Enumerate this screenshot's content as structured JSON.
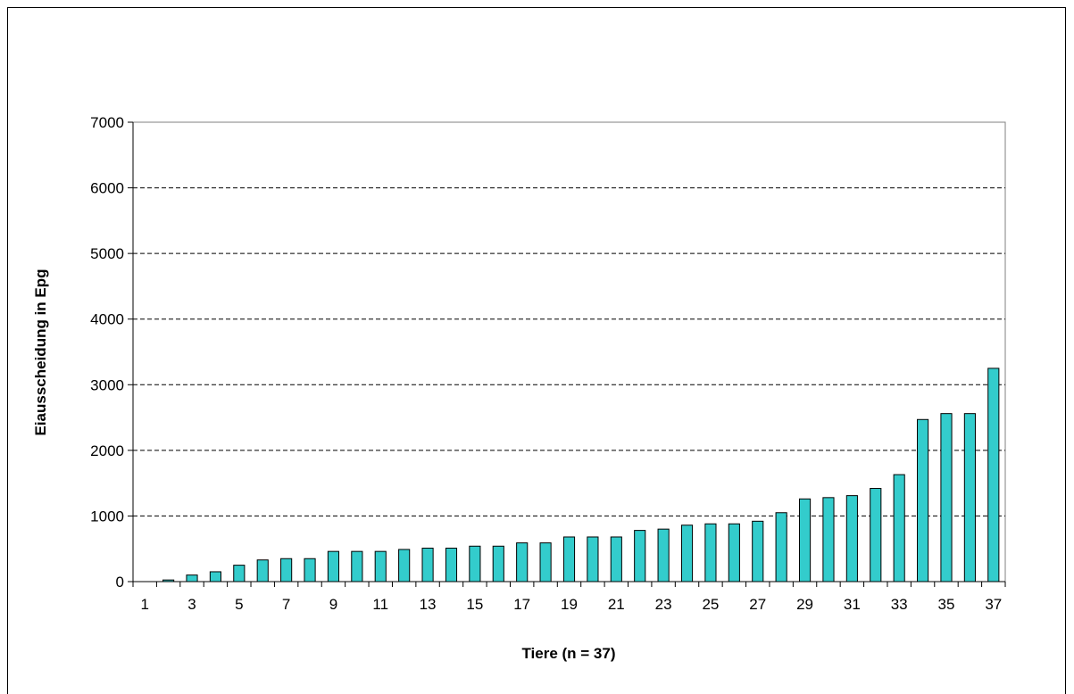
{
  "chart_data": {
    "type": "bar",
    "title": "",
    "xlabel": "Tiere (n = 37)",
    "ylabel": "Eiausscheidung in Epg",
    "ylim": [
      0,
      7000
    ],
    "yticks": [
      0,
      1000,
      2000,
      3000,
      4000,
      5000,
      6000,
      7000
    ],
    "grid": "horizontal-dashed",
    "legend": "none",
    "bar_color": "#33CCCC",
    "categories": [
      "1",
      "2",
      "3",
      "4",
      "5",
      "6",
      "7",
      "8",
      "9",
      "10",
      "11",
      "12",
      "13",
      "14",
      "15",
      "16",
      "17",
      "18",
      "19",
      "20",
      "21",
      "22",
      "23",
      "24",
      "25",
      "26",
      "27",
      "28",
      "29",
      "30",
      "31",
      "32",
      "33",
      "34",
      "35",
      "36",
      "37"
    ],
    "x_tick_labels": [
      "1",
      "3",
      "5",
      "7",
      "9",
      "11",
      "13",
      "15",
      "17",
      "19",
      "21",
      "23",
      "25",
      "27",
      "29",
      "31",
      "33",
      "35",
      "37"
    ],
    "values": [
      0,
      25,
      100,
      150,
      250,
      330,
      350,
      350,
      460,
      460,
      460,
      490,
      510,
      510,
      540,
      540,
      590,
      590,
      680,
      680,
      680,
      780,
      800,
      860,
      880,
      880,
      920,
      1050,
      1260,
      1280,
      1310,
      1420,
      1630,
      2470,
      2560,
      2560,
      3250
    ]
  }
}
